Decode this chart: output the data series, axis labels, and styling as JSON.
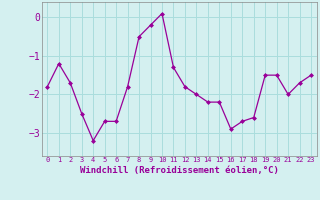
{
  "x": [
    0,
    1,
    2,
    3,
    4,
    5,
    6,
    7,
    8,
    9,
    10,
    11,
    12,
    13,
    14,
    15,
    16,
    17,
    18,
    19,
    20,
    21,
    22,
    23
  ],
  "y": [
    -1.8,
    -1.2,
    -1.7,
    -2.5,
    -3.2,
    -2.7,
    -2.7,
    -1.8,
    -0.5,
    -0.2,
    0.1,
    -1.3,
    -1.8,
    -2.0,
    -2.2,
    -2.2,
    -2.9,
    -2.7,
    -2.6,
    -1.5,
    -1.5,
    -2.0,
    -1.7,
    -1.5
  ],
  "line_color": "#990099",
  "marker": "D",
  "marker_size": 2,
  "bg_color": "#d4f0f0",
  "grid_color": "#aadddd",
  "xlabel": "Windchill (Refroidissement éolien,°C)",
  "xlabel_fontsize": 6.5,
  "yticks": [
    0,
    -1,
    -2,
    -3
  ],
  "ylim": [
    -3.6,
    0.4
  ],
  "xlim": [
    -0.5,
    23.5
  ],
  "xtick_labels": [
    "0",
    "1",
    "2",
    "3",
    "4",
    "5",
    "6",
    "7",
    "8",
    "9",
    "10",
    "11",
    "12",
    "13",
    "14",
    "15",
    "16",
    "17",
    "18",
    "19",
    "20",
    "21",
    "22",
    "23"
  ],
  "ytick_fontsize": 7,
  "xtick_fontsize": 5
}
